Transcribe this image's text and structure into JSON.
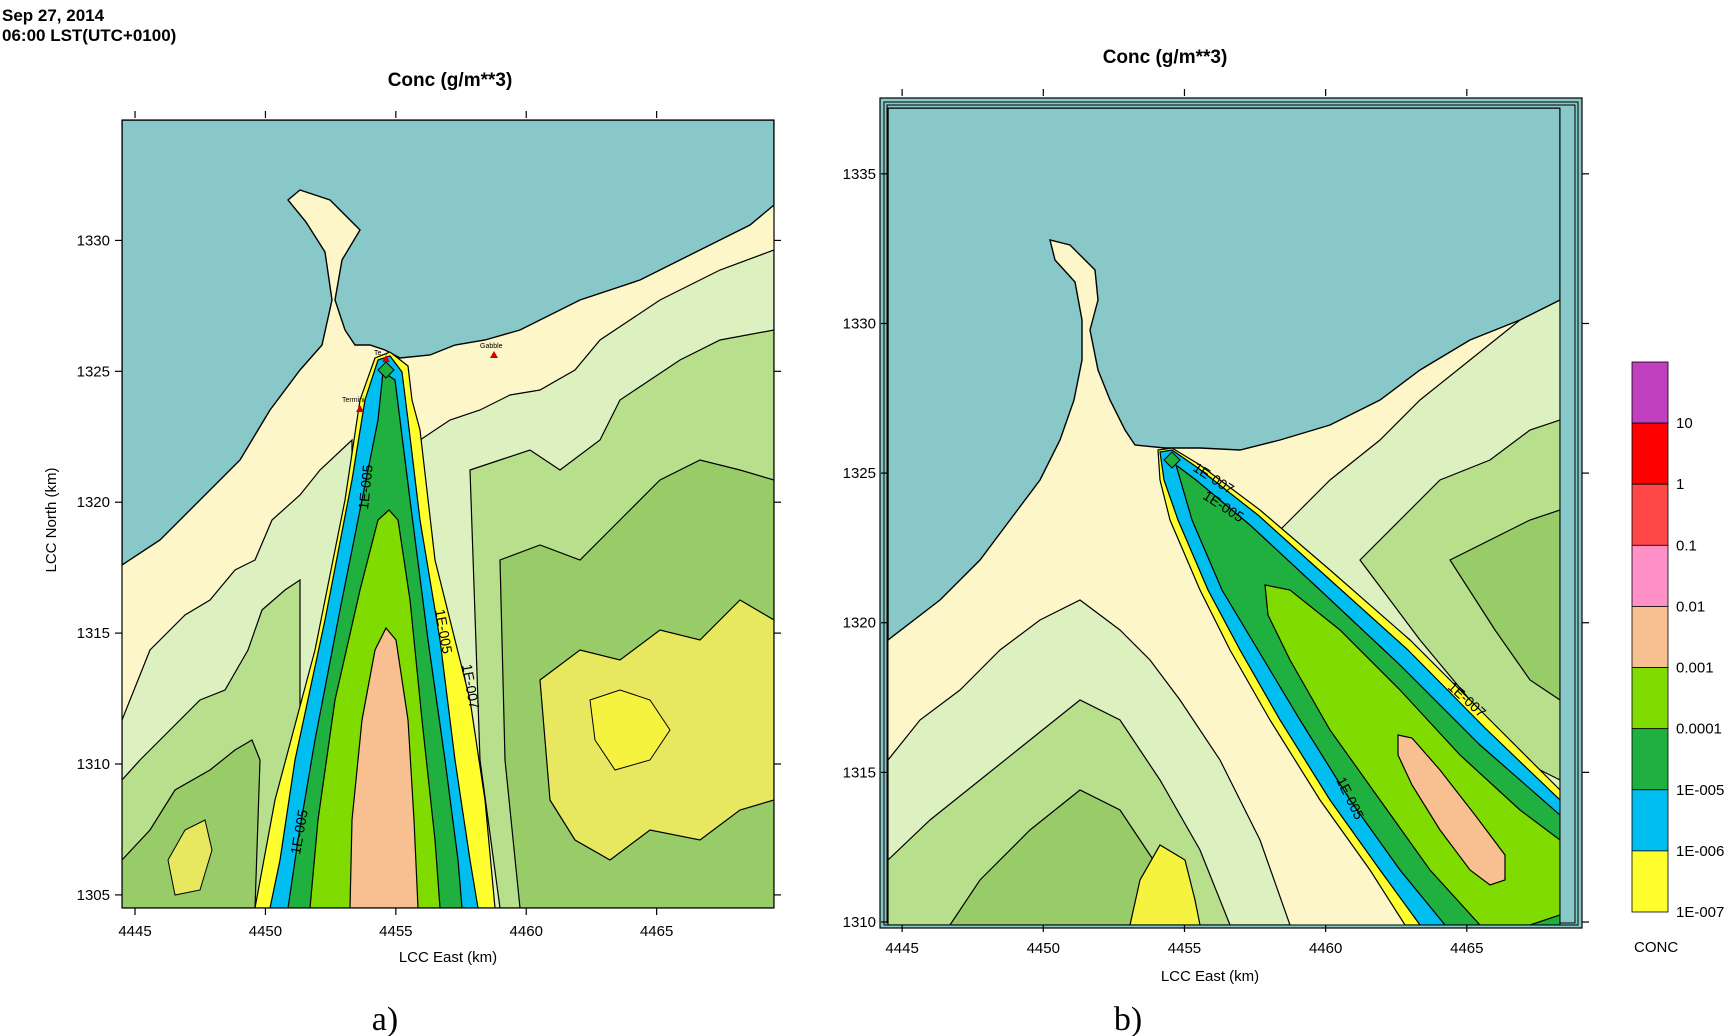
{
  "header": {
    "date": "Sep 27, 2014",
    "time": "06:00 LST(UTC+0100)"
  },
  "chart_data": [
    {
      "type": "contour",
      "panel_label": "a)",
      "title": "Conc (g/m**3)",
      "xlabel": "LCC East (km)",
      "ylabel": "LCC North (km)",
      "xlim": [
        4444.5,
        4469.5
      ],
      "ylim": [
        1304.5,
        1334.6
      ],
      "x_ticks": [
        "4445",
        "4450",
        "4455",
        "4460",
        "4465"
      ],
      "y_ticks": [
        "1305",
        "1310",
        "1315",
        "1320",
        "1325",
        "1330"
      ],
      "contour_labels": [
        "1E-005",
        "1E-005",
        "1E-005",
        "1E-007"
      ],
      "poi_labels": [
        "Te...",
        "Gabble",
        "Termini"
      ],
      "plume_direction": "south",
      "colors": {
        "sea": "#88c8c8",
        "land": "#fdf6c8"
      }
    },
    {
      "type": "contour",
      "panel_label": "b)",
      "title": "Conc (g/m**3)",
      "xlabel": "LCC East (km)",
      "ylabel": "",
      "xlim": [
        4444.5,
        4468.3
      ],
      "ylim": [
        1309.9,
        1337.2
      ],
      "x_ticks": [
        "4445",
        "4450",
        "4455",
        "4460",
        "4465"
      ],
      "y_ticks": [
        "1310",
        "1315",
        "1320",
        "1325",
        "1330",
        "1335"
      ],
      "contour_labels": [
        "1E-007",
        "1E-005",
        "1E-005",
        "1E-007"
      ],
      "plume_direction": "south-east"
    }
  ],
  "legend": {
    "title": "CONC",
    "levels": [
      "10",
      "1",
      "0.1",
      "0.01",
      "0.001",
      "0.0001",
      "1E-005",
      "1E-006",
      "1E-007"
    ],
    "colors": [
      "#c040c0",
      "#ff0000",
      "#ff4848",
      "#ff90c8",
      "#f8c090",
      "#80dc00",
      "#20b040",
      "#00bff0",
      "#ffff30"
    ]
  }
}
